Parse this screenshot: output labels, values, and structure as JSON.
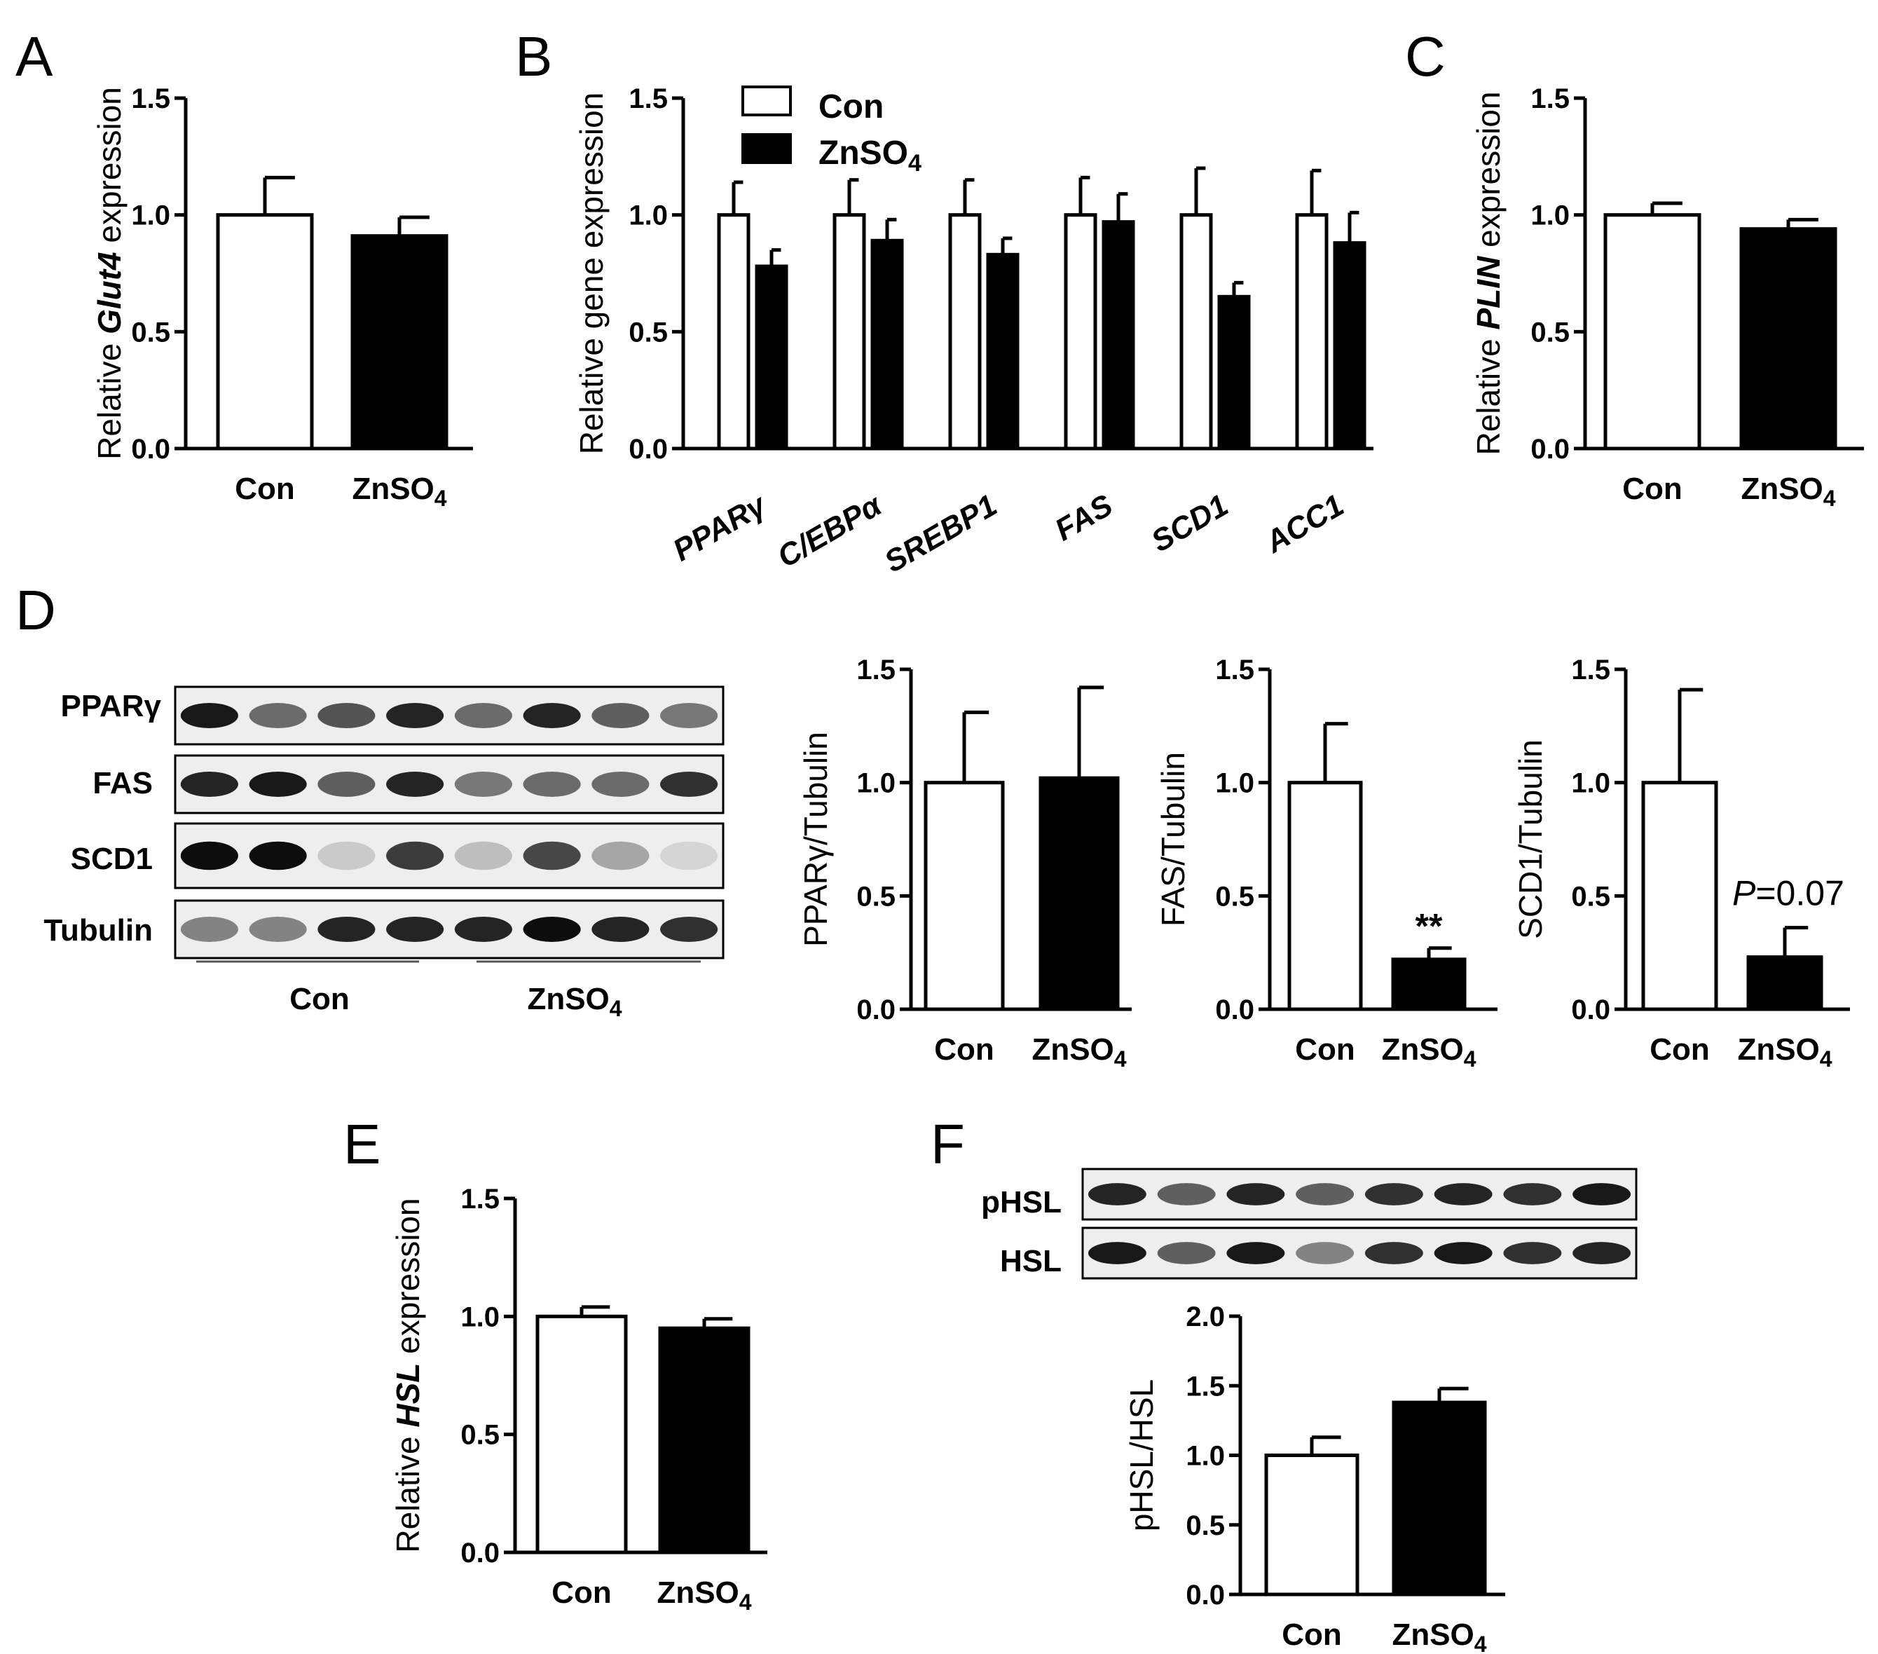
{
  "figure": {
    "panels": [
      "A",
      "B",
      "C",
      "D",
      "E",
      "F"
    ]
  },
  "colors": {
    "con": "#ffffff",
    "zn": "#000000",
    "stroke": "#000000"
  },
  "blots": {
    "D": {
      "labels": [
        "PPARγ",
        "FAS",
        "SCD1",
        "Tubulin"
      ],
      "groups": [
        "Con",
        "ZnSO4"
      ]
    },
    "F": {
      "labels": [
        "pHSL",
        "HSL"
      ]
    }
  },
  "chart_data": [
    {
      "id": "A",
      "type": "bar",
      "ylabel": "Relative Glut4 expression",
      "categories": [
        "Con",
        "ZnSO4"
      ],
      "values": [
        1.0,
        0.91
      ],
      "errors": [
        0.16,
        0.08
      ],
      "ylim": [
        0,
        1.5
      ],
      "yticks": [
        "0.0",
        "0.5",
        "1.0",
        "1.5"
      ]
    },
    {
      "id": "B",
      "type": "bar",
      "ylabel": "Relative gene expression",
      "categories": [
        "PPARγ",
        "C/EBPα",
        "SREBP1",
        "FAS",
        "SCD1",
        "ACC1"
      ],
      "series": [
        {
          "name": "Con",
          "values": [
            1.0,
            1.0,
            1.0,
            1.0,
            1.0,
            1.0
          ],
          "errors": [
            0.14,
            0.15,
            0.15,
            0.16,
            0.2,
            0.19
          ]
        },
        {
          "name": "ZnSO4",
          "values": [
            0.78,
            0.89,
            0.83,
            0.97,
            0.65,
            0.88
          ],
          "errors": [
            0.07,
            0.09,
            0.07,
            0.12,
            0.06,
            0.13
          ]
        }
      ],
      "legend": [
        "Con",
        "ZnSO4"
      ],
      "ylim": [
        0,
        1.5
      ],
      "yticks": [
        "0.0",
        "0.5",
        "1.0",
        "1.5"
      ]
    },
    {
      "id": "C",
      "type": "bar",
      "ylabel": "Relative PLIN expression",
      "categories": [
        "Con",
        "ZnSO4"
      ],
      "values": [
        1.0,
        0.94
      ],
      "errors": [
        0.05,
        0.04
      ],
      "ylim": [
        0,
        1.5
      ],
      "yticks": [
        "0.0",
        "0.5",
        "1.0",
        "1.5"
      ]
    },
    {
      "id": "D1",
      "type": "bar",
      "ylabel": "PPARγ/Tubulin",
      "categories": [
        "Con",
        "ZnSO4"
      ],
      "values": [
        1.0,
        1.02
      ],
      "errors": [
        0.31,
        0.4
      ],
      "ylim": [
        0,
        1.5
      ],
      "yticks": [
        "0.0",
        "0.5",
        "1.0",
        "1.5"
      ]
    },
    {
      "id": "D2",
      "type": "bar",
      "ylabel": "FAS/Tubulin",
      "categories": [
        "Con",
        "ZnSO4"
      ],
      "values": [
        1.0,
        0.22
      ],
      "errors": [
        0.26,
        0.05
      ],
      "annotation": "**",
      "ylim": [
        0,
        1.5
      ],
      "yticks": [
        "0.0",
        "0.5",
        "1.0",
        "1.5"
      ]
    },
    {
      "id": "D3",
      "type": "bar",
      "ylabel": "SCD1/Tubulin",
      "categories": [
        "Con",
        "ZnSO4"
      ],
      "values": [
        1.0,
        0.23
      ],
      "errors": [
        0.41,
        0.13
      ],
      "annotation_p": "P",
      "annotation_value": "=0.07",
      "ylim": [
        0,
        1.5
      ],
      "yticks": [
        "0.0",
        "0.5",
        "1.0",
        "1.5"
      ]
    },
    {
      "id": "E",
      "type": "bar",
      "ylabel": "Relative HSL expression",
      "categories": [
        "Con",
        "ZnSO4"
      ],
      "values": [
        1.0,
        0.95
      ],
      "errors": [
        0.04,
        0.04
      ],
      "ylim": [
        0,
        1.5
      ],
      "yticks": [
        "0.0",
        "0.5",
        "1.0",
        "1.5"
      ]
    },
    {
      "id": "F",
      "type": "bar",
      "ylabel": "pHSL/HSL",
      "categories": [
        "Con",
        "ZnSO4"
      ],
      "values": [
        1.0,
        1.38
      ],
      "errors": [
        0.13,
        0.1
      ],
      "ylim": [
        0,
        2.0
      ],
      "yticks": [
        "0.0",
        "0.5",
        "1.0",
        "1.5",
        "2.0"
      ]
    }
  ]
}
